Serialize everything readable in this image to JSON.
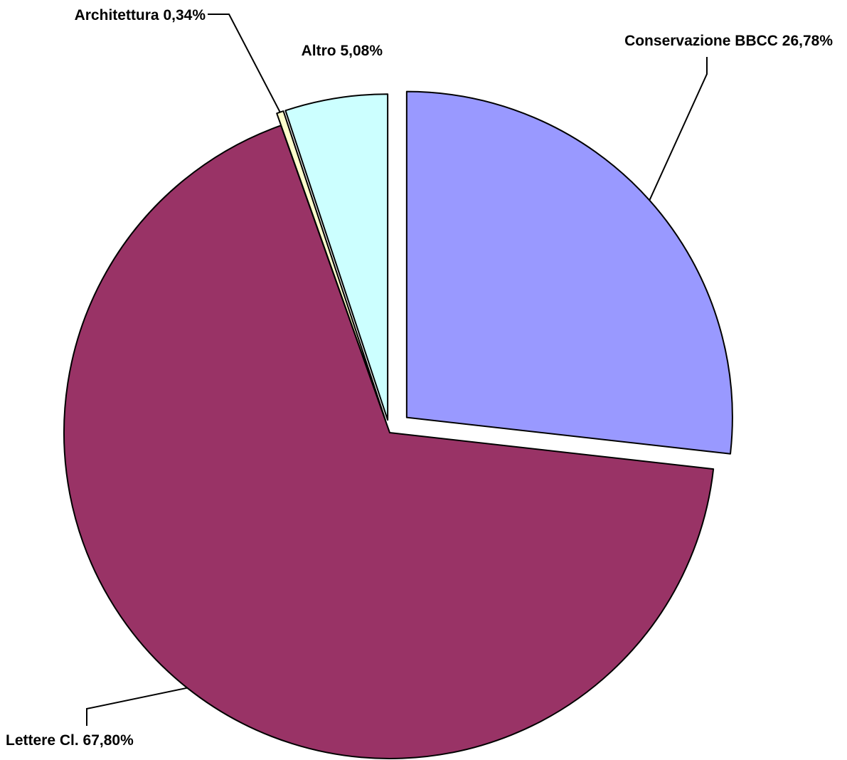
{
  "chart_data": {
    "type": "pie",
    "title": "",
    "legend": "none",
    "slices": [
      {
        "label": "Conservazione BBCC  26,78%",
        "name": "Conservazione BBCC",
        "value": 26.78,
        "color": "#9999FF"
      },
      {
        "label": "Lettere Cl.  67,80%",
        "name": "Lettere Cl.",
        "value": 67.8,
        "color": "#993366"
      },
      {
        "label": "Architettura  0,34%",
        "name": "Architettura",
        "value": 0.34,
        "color": "#FFFFCC"
      },
      {
        "label": "Altro  5,08%",
        "name": "Altro",
        "value": 5.08,
        "color": "#CCFFFF"
      }
    ]
  }
}
